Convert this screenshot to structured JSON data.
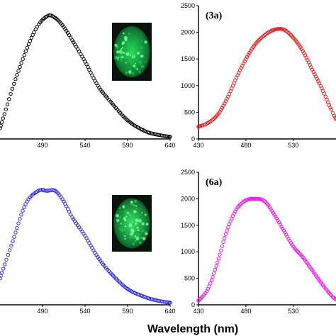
{
  "chart_data": [
    {
      "type": "scatter",
      "label": "",
      "color": "#000000",
      "xlim": [
        440,
        640
      ],
      "xticks": [
        490,
        540,
        590,
        640
      ],
      "yticks": [],
      "ylim": [
        0,
        2500
      ],
      "has_inset_photo": true,
      "inset_glow_color": "#22e05a",
      "series": [
        {
          "x": [
            440,
            460,
            480,
            495,
            505,
            515,
            525,
            540,
            555,
            570,
            590,
            610,
            625,
            640
          ],
          "y": [
            200,
            1200,
            2000,
            2300,
            2270,
            2100,
            1850,
            1450,
            1000,
            700,
            350,
            150,
            80,
            40
          ]
        }
      ]
    },
    {
      "type": "scatter",
      "label": "(3a)",
      "color": "#e02020",
      "xlim": [
        430,
        575
      ],
      "xticks": [
        430,
        480,
        530
      ],
      "yticks": [
        0,
        500,
        1000,
        1500,
        2000,
        2500
      ],
      "ylim": [
        0,
        2500
      ],
      "series": [
        {
          "x": [
            430,
            440,
            450,
            460,
            470,
            480,
            490,
            500,
            510,
            520,
            530,
            540,
            550,
            560,
            570,
            575
          ],
          "y": [
            230,
            300,
            450,
            750,
            1150,
            1500,
            1780,
            1950,
            2050,
            2050,
            1900,
            1650,
            1300,
            950,
            550,
            370
          ]
        }
      ]
    },
    {
      "type": "scatter",
      "label": "",
      "color": "#2a2ad8",
      "xlim": [
        440,
        640
      ],
      "xticks": [
        490,
        540,
        590,
        640
      ],
      "yticks": [],
      "ylim": [
        0,
        2500
      ],
      "has_inset_photo": true,
      "inset_glow_color": "#3be86b",
      "series": [
        {
          "x": [
            440,
            455,
            470,
            485,
            495,
            505,
            515,
            525,
            540,
            555,
            570,
            590,
            610,
            625,
            640
          ],
          "y": [
            500,
            1200,
            1900,
            2150,
            2150,
            2150,
            1950,
            1650,
            1300,
            900,
            600,
            300,
            150,
            80,
            40
          ]
        }
      ]
    },
    {
      "type": "scatter",
      "label": "(6a)",
      "color": "#e020e0",
      "xlim": [
        430,
        575
      ],
      "xticks": [
        430,
        480,
        530
      ],
      "yticks": [
        0,
        500,
        1000,
        1500,
        2000,
        2500
      ],
      "ylim": [
        0,
        2500
      ],
      "series": [
        {
          "x": [
            430,
            440,
            450,
            460,
            470,
            480,
            490,
            500,
            510,
            520,
            530,
            540,
            550,
            560,
            570,
            575
          ],
          "y": [
            80,
            300,
            800,
            1400,
            1800,
            1970,
            2000,
            1950,
            1700,
            1400,
            1100,
            900,
            650,
            400,
            180,
            100
          ]
        }
      ]
    }
  ],
  "xlabel": "Wavelength (nm)"
}
